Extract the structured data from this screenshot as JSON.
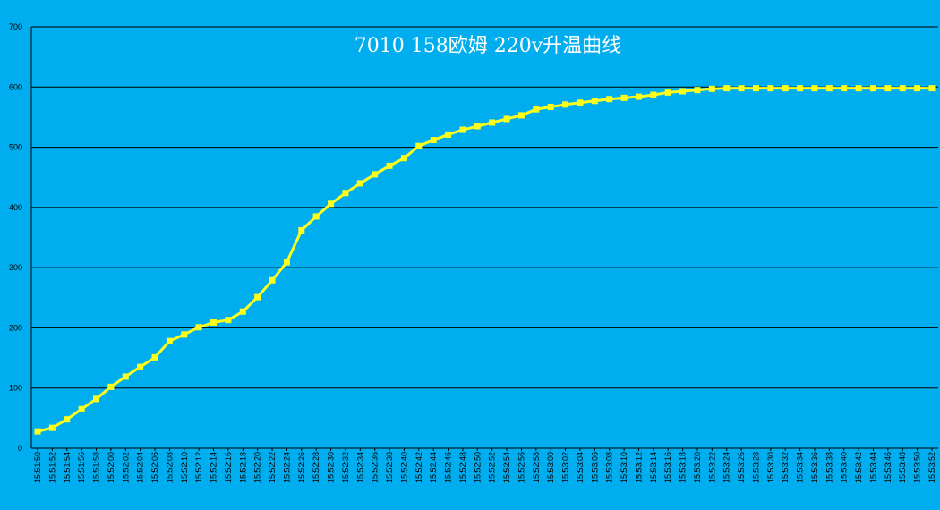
{
  "chart_data": {
    "type": "line",
    "title": "7010 158欧姆 220v升温曲线",
    "xlabel": "",
    "ylabel": "",
    "ylim": [
      0,
      700
    ],
    "y_ticks": [
      0,
      100,
      200,
      300,
      400,
      500,
      600,
      700
    ],
    "grid": true,
    "legend": "none",
    "colors": {
      "background": "#00aeef",
      "line": "#ffff1a",
      "marker": "#ffff1a",
      "grid": "#000000",
      "title": "#ffffff"
    },
    "x": [
      "15:51:50",
      "15:51:52",
      "15:51:54",
      "15:51:56",
      "15:51:58",
      "15:52:00",
      "15:52:02",
      "15:52:04",
      "15:52:06",
      "15:52:08",
      "15:52:10",
      "15:52:12",
      "15:52:14",
      "15:52:16",
      "15:52:18",
      "15:52:20",
      "15:52:22",
      "15:52:24",
      "15:52:26",
      "15:52:28",
      "15:52:30",
      "15:52:32",
      "15:52:34",
      "15:52:36",
      "15:52:38",
      "15:52:40",
      "15:52:42",
      "15:52:44",
      "15:52:46",
      "15:52:48",
      "15:52:50",
      "15:52:52",
      "15:52:54",
      "15:52:56",
      "15:52:58",
      "15:53:00",
      "15:53:02",
      "15:53:04",
      "15:53:06",
      "15:53:08",
      "15:53:10",
      "15:53:12",
      "15:53:14",
      "15:53:16",
      "15:53:18",
      "15:53:20",
      "15:53:22",
      "15:53:24",
      "15:53:26",
      "15:53:28",
      "15:53:30",
      "15:53:32",
      "15:53:34",
      "15:53:36",
      "15:53:38",
      "15:53:40",
      "15:53:42",
      "15:53:44",
      "15:53:46",
      "15:53:48",
      "15:53:50",
      "15:53:52"
    ],
    "series": [
      {
        "values": [
          28,
          34,
          48,
          65,
          82,
          102,
          119,
          135,
          151,
          178,
          189,
          201,
          209,
          213,
          227,
          251,
          279,
          309,
          362,
          385,
          406,
          424,
          440,
          455,
          469,
          482,
          502,
          512,
          521,
          529,
          535,
          541,
          547,
          553,
          563,
          567,
          571,
          574,
          577,
          580,
          582,
          584,
          587,
          591,
          593,
          595,
          597,
          598,
          598,
          598,
          598,
          598,
          598,
          598,
          598,
          598,
          598,
          598,
          598,
          598,
          598,
          598
        ]
      }
    ]
  }
}
